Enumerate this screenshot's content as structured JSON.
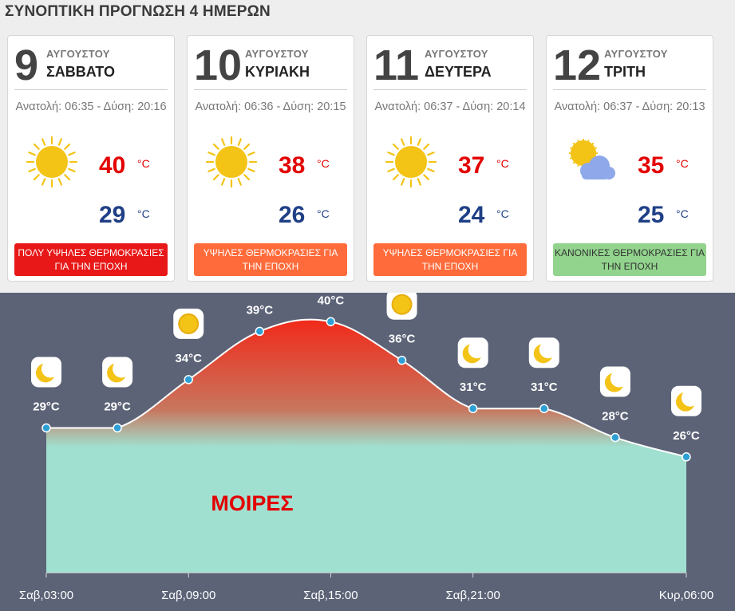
{
  "page_title": "ΣΥΝΟΠΤΙΚΗ ΠΡΟΓΝΩΣΗ 4 ΗΜΕΡΩΝ",
  "days": [
    {
      "day": "9",
      "month": "ΑΥΓΟΥΣΤΟΥ",
      "weekday": "ΣΑΒΒΑΤΟ",
      "sun_times": "Ανατολή: 06:35 - Δύση: 20:16",
      "icon": "sun-icon",
      "max": "40",
      "min": "29",
      "unit": "°C",
      "status": "ΠΟΛΥ ΥΨΗΛΕΣ ΘΕΡΜΟΚΡΑΣΙΕΣ ΓΙΑ ΤΗΝ ΕΠΟΧΗ",
      "status_color": "#e81818",
      "status_text_color": "#ffffff"
    },
    {
      "day": "10",
      "month": "ΑΥΓΟΥΣΤΟΥ",
      "weekday": "ΚΥΡΙΑΚΗ",
      "sun_times": "Ανατολή: 06:36 - Δύση: 20:15",
      "icon": "sun-icon",
      "max": "38",
      "min": "26",
      "unit": "°C",
      "status": "ΥΨΗΛΕΣ ΘΕΡΜΟΚΡΑΣΙΕΣ ΓΙΑ ΤΗΝ ΕΠΟΧΗ",
      "status_color": "#ff6b3a",
      "status_text_color": "#ffffff"
    },
    {
      "day": "11",
      "month": "ΑΥΓΟΥΣΤΟΥ",
      "weekday": "ΔΕΥΤΕΡΑ",
      "sun_times": "Ανατολή: 06:37 - Δύση: 20:14",
      "icon": "sun-icon",
      "max": "37",
      "min": "24",
      "unit": "°C",
      "status": "ΥΨΗΛΕΣ ΘΕΡΜΟΚΡΑΣΙΕΣ ΓΙΑ ΤΗΝ ΕΠΟΧΗ",
      "status_color": "#ff6b3a",
      "status_text_color": "#ffffff"
    },
    {
      "day": "12",
      "month": "ΑΥΓΟΥΣΤΟΥ",
      "weekday": "ΤΡΙΤΗ",
      "sun_times": "Ανατολή: 06:37 - Δύση: 20:13",
      "icon": "sun-cloud-icon",
      "max": "35",
      "min": "25",
      "unit": "°C",
      "status": "ΚΑΝΟΝΙΚΕΣ ΘΕΡΜΟΚΡΑΣΙΕΣ ΓΙΑ ΤΗΝ ΕΠΟΧΗ",
      "status_color": "#92d48d",
      "status_text_color": "#333333"
    }
  ],
  "colors": {
    "max_temp": "#e30000",
    "min_temp": "#1f3f86",
    "chart_bg": "#5c6377",
    "point": "#2d9fd4",
    "area_bottom": "#a0e0d0",
    "area_top": "#f02b1b",
    "watermark": "#e30000"
  },
  "chart_watermark": "ΜΟΙΡΕΣ",
  "chart_data": {
    "type": "area",
    "x": [
      "Σαβ,03:00",
      "Σαβ,06:00",
      "Σαβ,09:00",
      "Σαβ,12:00",
      "Σαβ,15:00",
      "Σαβ,18:00",
      "Σαβ,21:00",
      "Σαβ,24:00",
      "Κυρ,03:00",
      "Κυρ,06:00"
    ],
    "x_tick_labels": [
      "Σαβ,03:00",
      "Σαβ,09:00",
      "Σαβ,15:00",
      "Σαβ,21:00",
      "Κυρ,06:00"
    ],
    "values": [
      29,
      29,
      34,
      39,
      40,
      36,
      31,
      31,
      28,
      26
    ],
    "point_labels": [
      "29°C",
      "29°C",
      "34°C",
      "39°C",
      "40°C",
      "36°C",
      "31°C",
      "31°C",
      "28°C",
      "26°C"
    ],
    "icons": [
      "moon-icon",
      "moon-icon",
      "sun-icon",
      "sun-icon",
      "sun-icon",
      "sun-icon",
      "moon-icon",
      "moon-icon",
      "moon-icon",
      "moon-icon"
    ],
    "ylim": [
      14,
      43
    ],
    "grid": false,
    "legend": "none"
  }
}
